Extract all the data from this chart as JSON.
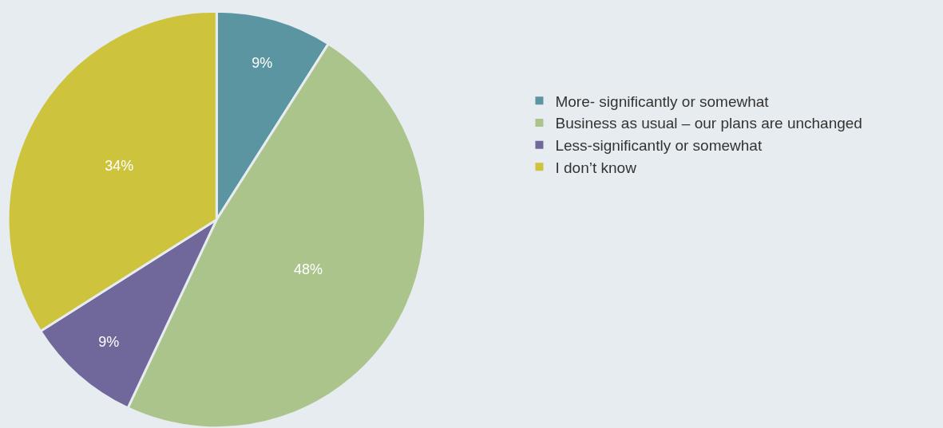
{
  "chart_data": {
    "type": "pie",
    "categories": [
      "More- significantly or somewhat",
      "Business as usual – our plans are unchanged",
      "Less-significantly or somewhat",
      "I don’t know"
    ],
    "values": [
      9,
      48,
      9,
      34
    ],
    "value_labels": [
      "9%",
      "48%",
      "9%",
      "34%"
    ],
    "colors": [
      "#5b95a2",
      "#abc48c",
      "#70679a",
      "#cdc33d"
    ],
    "legend": "right"
  }
}
